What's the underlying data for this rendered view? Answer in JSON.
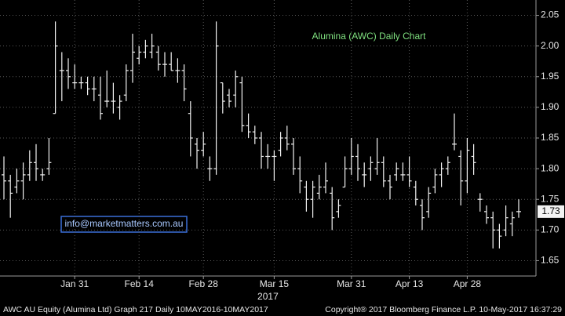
{
  "chart_data": {
    "type": "ohlc",
    "title": "Alumina (AWC) Daily Chart",
    "title_color": "#7fe07f",
    "color": "#f2f2f2",
    "grid": true,
    "categories": [
      null,
      null,
      null,
      null,
      null,
      null,
      null,
      null,
      null,
      null,
      null,
      "Jan 31",
      null,
      null,
      null,
      null,
      null,
      null,
      null,
      null,
      null,
      "Feb 14",
      null,
      null,
      null,
      null,
      null,
      null,
      null,
      null,
      null,
      "Feb 28",
      null,
      null,
      null,
      null,
      null,
      null,
      null,
      null,
      null,
      null,
      "Mar 15",
      null,
      null,
      null,
      null,
      null,
      null,
      null,
      null,
      null,
      null,
      null,
      "Mar 31",
      null,
      null,
      null,
      null,
      null,
      null,
      null,
      null,
      "Apr 13",
      null,
      null,
      null,
      null,
      null,
      null,
      null,
      null,
      "Apr 28",
      null,
      null,
      null,
      null,
      null,
      null,
      null,
      null
    ],
    "x_year_label": "2017",
    "open": [
      1.79,
      1.78,
      1.77,
      1.78,
      1.79,
      1.81,
      1.79,
      1.8,
      1.89,
      1.96,
      1.96,
      1.94,
      1.94,
      1.94,
      1.93,
      1.92,
      1.91,
      1.91,
      1.9,
      1.92,
      1.96,
      1.98,
      1.99,
      1.99,
      1.99,
      1.97,
      1.97,
      1.96,
      1.96,
      1.89,
      1.84,
      1.83,
      1.8,
      1.8,
      1.94,
      1.92,
      1.92,
      1.94,
      1.87,
      1.86,
      1.85,
      1.82,
      1.82,
      1.83,
      1.85,
      1.84,
      1.8,
      1.77,
      1.75,
      1.76,
      1.77,
      1.76,
      1.73,
      1.77,
      1.8,
      1.82,
      1.79,
      1.8,
      1.8,
      1.81,
      1.78,
      1.79,
      1.79,
      1.79,
      1.77,
      1.74,
      1.73,
      1.77,
      1.79,
      1.8,
      1.84,
      1.82,
      1.78,
      1.82,
      1.75,
      1.73,
      1.72,
      1.7,
      1.7,
      1.71,
      1.73
    ],
    "high": [
      1.82,
      1.79,
      1.8,
      1.81,
      1.83,
      1.84,
      1.8,
      1.85,
      2.04,
      1.99,
      1.98,
      1.97,
      1.95,
      1.95,
      1.95,
      1.95,
      1.96,
      1.94,
      1.92,
      1.97,
      2.02,
      2.0,
      2.01,
      2.02,
      2.0,
      1.99,
      1.99,
      1.98,
      1.97,
      1.91,
      1.85,
      1.86,
      1.82,
      2.04,
      1.94,
      1.93,
      1.96,
      1.95,
      1.89,
      1.87,
      1.86,
      1.84,
      1.83,
      1.86,
      1.87,
      1.85,
      1.82,
      1.78,
      1.78,
      1.79,
      1.81,
      1.77,
      1.75,
      1.82,
      1.85,
      1.84,
      1.81,
      1.82,
      1.85,
      1.82,
      1.79,
      1.81,
      1.81,
      1.82,
      1.78,
      1.75,
      1.77,
      1.8,
      1.81,
      1.82,
      1.89,
      1.83,
      1.85,
      1.84,
      1.76,
      1.74,
      1.73,
      1.71,
      1.74,
      1.73,
      1.75
    ],
    "low": [
      1.75,
      1.72,
      1.76,
      1.75,
      1.78,
      1.78,
      1.78,
      1.79,
      1.89,
      1.91,
      1.93,
      1.93,
      1.93,
      1.92,
      1.91,
      1.88,
      1.9,
      1.89,
      1.88,
      1.91,
      1.94,
      1.97,
      1.98,
      1.98,
      1.96,
      1.95,
      1.96,
      1.94,
      1.91,
      1.82,
      1.8,
      1.82,
      1.78,
      1.79,
      1.89,
      1.9,
      1.9,
      1.86,
      1.85,
      1.84,
      1.8,
      1.8,
      1.78,
      1.82,
      1.83,
      1.79,
      1.76,
      1.73,
      1.72,
      1.75,
      1.76,
      1.7,
      1.72,
      1.77,
      1.79,
      1.78,
      1.77,
      1.78,
      1.79,
      1.77,
      1.75,
      1.78,
      1.78,
      1.77,
      1.74,
      1.7,
      1.72,
      1.76,
      1.77,
      1.79,
      1.83,
      1.74,
      1.76,
      1.79,
      1.73,
      1.71,
      1.67,
      1.67,
      1.69,
      1.69,
      1.72
    ],
    "close": [
      1.78,
      1.76,
      1.78,
      1.79,
      1.81,
      1.8,
      1.79,
      1.81,
      2.0,
      1.96,
      1.95,
      1.94,
      1.94,
      1.93,
      1.93,
      1.89,
      1.91,
      1.91,
      1.91,
      1.96,
      1.99,
      1.99,
      2.0,
      2.0,
      1.97,
      1.97,
      1.96,
      1.96,
      1.93,
      1.85,
      1.83,
      1.84,
      1.8,
      2.0,
      1.91,
      1.91,
      1.95,
      1.87,
      1.86,
      1.85,
      1.82,
      1.82,
      1.82,
      1.85,
      1.84,
      1.8,
      1.78,
      1.75,
      1.77,
      1.77,
      1.78,
      1.72,
      1.74,
      1.8,
      1.82,
      1.8,
      1.79,
      1.81,
      1.81,
      1.78,
      1.77,
      1.8,
      1.79,
      1.78,
      1.75,
      1.72,
      1.76,
      1.79,
      1.8,
      1.81,
      1.84,
      1.78,
      1.83,
      1.81,
      1.75,
      1.72,
      1.7,
      1.69,
      1.72,
      1.72,
      1.73
    ],
    "last_value": 1.73,
    "ylim": [
      1.625,
      2.075
    ],
    "yticks": [
      1.65,
      {
        "value": 1.7,
        "label": "1.70"
      },
      1.75,
      {
        "value": 1.8,
        "label": "1.80"
      },
      1.85,
      {
        "value": 1.9,
        "label": "1.90"
      },
      1.95,
      {
        "value": 2,
        "label": "2.00"
      },
      2.05
    ],
    "watermark": "info@marketmatters.com.au",
    "footer_left": "AWC AU Equity (Alumina Ltd) Graph 217  Daily 10MAY2016-10MAY2017",
    "footer_right": "Copyright® 2017 Bloomberg Finance L.P.   10-May-2017 16:37:29"
  }
}
